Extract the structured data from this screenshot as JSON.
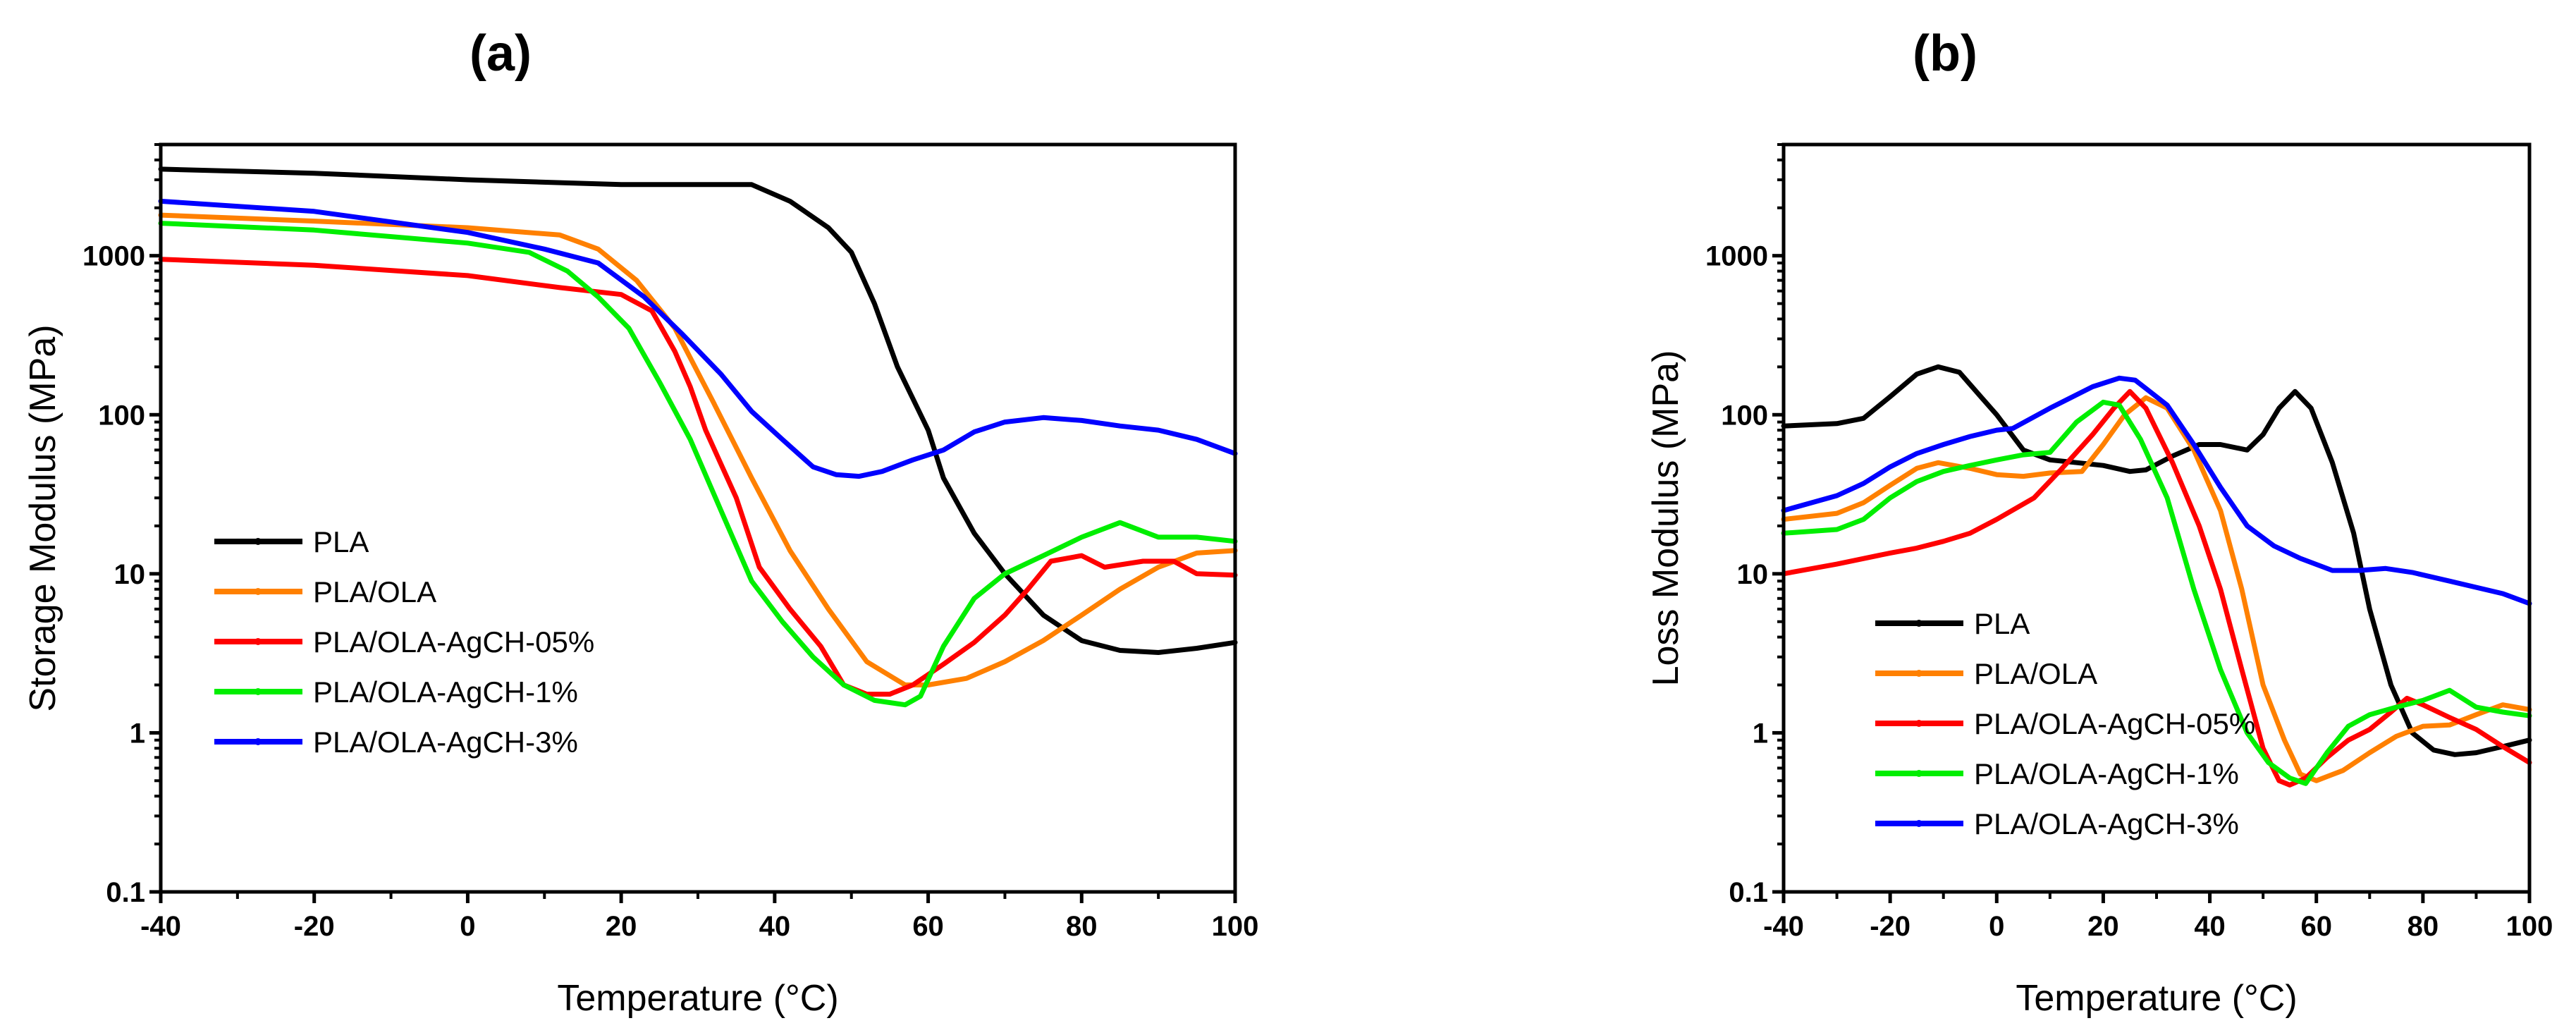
{
  "chart_data": [
    {
      "type": "line",
      "panel_label": "(a)",
      "xlabel": "Temperature (°C)",
      "ylabel": "Storage Modulus (MPa)",
      "xlim": [
        -40,
        100
      ],
      "ylim": [
        0.1,
        5000
      ],
      "yscale": "log",
      "xticks": [
        "-40",
        "-20",
        "0",
        "20",
        "40",
        "60",
        "80",
        "100"
      ],
      "yticks": [
        "0.1",
        "1",
        "10",
        "100",
        "1000"
      ],
      "legend_position": "center-left",
      "series": [
        {
          "name": "PLA",
          "color": "#000000",
          "x": [
            -40,
            -20,
            0,
            20,
            37,
            42,
            47,
            50,
            53,
            56,
            60,
            62,
            66,
            70,
            75,
            80,
            85,
            90,
            95,
            100
          ],
          "y": [
            3500,
            3300,
            3000,
            2800,
            2800,
            2200,
            1500,
            1050,
            500,
            200,
            80,
            40,
            18,
            10,
            5.5,
            3.8,
            3.3,
            3.2,
            3.4,
            3.7
          ]
        },
        {
          "name": "PLA/OLA",
          "color": "#ff8000",
          "x": [
            -40,
            -20,
            0,
            12,
            17,
            22,
            27,
            32,
            37,
            42,
            47,
            52,
            57,
            60,
            65,
            70,
            75,
            80,
            85,
            90,
            95,
            100
          ],
          "y": [
            1800,
            1650,
            1500,
            1350,
            1100,
            700,
            350,
            120,
            40,
            14,
            6,
            2.8,
            2.0,
            2.0,
            2.2,
            2.8,
            3.8,
            5.5,
            8,
            11,
            13.5,
            14
          ]
        },
        {
          "name": "PLA/OLA-AgCH-05%",
          "color": "#ff0000",
          "x": [
            -40,
            -20,
            0,
            12,
            20,
            24,
            27,
            29,
            31,
            35,
            38,
            42,
            46,
            49,
            52,
            55,
            58,
            62,
            66,
            70,
            73,
            76,
            80,
            83,
            88,
            92,
            95,
            100
          ],
          "y": [
            950,
            870,
            750,
            630,
            570,
            450,
            250,
            150,
            80,
            30,
            11,
            6,
            3.5,
            2,
            1.75,
            1.75,
            2,
            2.7,
            3.7,
            5.5,
            8,
            12,
            13,
            11,
            12,
            12,
            10,
            9.8
          ]
        },
        {
          "name": "PLA/OLA-AgCH-1%",
          "color": "#00ee00",
          "x": [
            -40,
            -20,
            0,
            8,
            13,
            17,
            21,
            25,
            29,
            33,
            37,
            41,
            45,
            49,
            53,
            57,
            59,
            62,
            66,
            70,
            75,
            80,
            85,
            90,
            95,
            100
          ],
          "y": [
            1600,
            1450,
            1200,
            1050,
            800,
            550,
            350,
            160,
            70,
            25,
            9,
            5,
            3,
            2,
            1.6,
            1.5,
            1.7,
            3.5,
            7,
            10,
            13,
            17,
            21,
            17,
            17,
            16
          ]
        },
        {
          "name": "PLA/OLA-AgCH-3%",
          "color": "#0000ff",
          "x": [
            -40,
            -20,
            0,
            10,
            17,
            23,
            28,
            33,
            37,
            41,
            45,
            48,
            51,
            54,
            58,
            62,
            66,
            70,
            75,
            80,
            85,
            90,
            95,
            100
          ],
          "y": [
            2200,
            1900,
            1400,
            1100,
            900,
            550,
            320,
            180,
            105,
            70,
            47,
            42,
            41,
            44,
            52,
            60,
            78,
            90,
            96,
            92,
            85,
            80,
            70,
            57
          ]
        }
      ]
    },
    {
      "type": "line",
      "panel_label": "(b)",
      "xlabel": "Temperature (°C)",
      "ylabel": "Loss Modulus (MPa)",
      "xlim": [
        -40,
        100
      ],
      "ylim": [
        0.1,
        5000
      ],
      "yscale": "log",
      "xticks": [
        "-40",
        "-20",
        "0",
        "20",
        "40",
        "60",
        "80",
        "100"
      ],
      "yticks": [
        "0.1",
        "1",
        "10",
        "100",
        "1000"
      ],
      "legend_position": "bottom-left",
      "series": [
        {
          "name": "PLA",
          "color": "#000000",
          "x": [
            -40,
            -30,
            -25,
            -20,
            -15,
            -11,
            -7,
            -3,
            0,
            5,
            10,
            15,
            20,
            25,
            28,
            33,
            38,
            42,
            47,
            50,
            53,
            56,
            59,
            63,
            67,
            70,
            74,
            78,
            82,
            86,
            90,
            95,
            100
          ],
          "y": [
            85,
            88,
            95,
            130,
            180,
            200,
            185,
            130,
            100,
            60,
            52,
            50,
            48,
            44,
            45,
            55,
            65,
            65,
            60,
            75,
            110,
            140,
            110,
            50,
            18,
            6,
            2,
            1,
            0.78,
            0.73,
            0.75,
            0.82,
            0.9
          ]
        },
        {
          "name": "PLA/OLA",
          "color": "#ff8000",
          "x": [
            -40,
            -30,
            -25,
            -20,
            -15,
            -11,
            -5,
            0,
            5,
            10,
            16,
            20,
            24,
            28,
            32,
            37,
            42,
            46,
            50,
            54,
            57,
            60,
            65,
            70,
            75,
            80,
            85,
            90,
            95,
            100
          ],
          "y": [
            22,
            24,
            28,
            36,
            46,
            50,
            46,
            42,
            41,
            43,
            44,
            65,
            100,
            128,
            110,
            60,
            25,
            8,
            2,
            0.9,
            0.55,
            0.5,
            0.58,
            0.75,
            0.95,
            1.1,
            1.12,
            1.3,
            1.5,
            1.4
          ]
        },
        {
          "name": "PLA/OLA-AgCH-05%",
          "color": "#ff0000",
          "x": [
            -40,
            -30,
            -20,
            -15,
            -10,
            -5,
            0,
            7,
            12,
            18,
            22,
            25,
            28,
            33,
            38,
            42,
            46,
            50,
            53,
            55,
            58,
            62,
            66,
            70,
            74,
            77,
            80,
            85,
            90,
            95,
            100
          ],
          "y": [
            10,
            11.5,
            13.5,
            14.5,
            16,
            18,
            22,
            30,
            45,
            75,
            110,
            140,
            110,
            50,
            20,
            8,
            2.5,
            0.8,
            0.5,
            0.47,
            0.52,
            0.7,
            0.9,
            1.05,
            1.35,
            1.65,
            1.5,
            1.25,
            1.05,
            0.82,
            0.65
          ]
        },
        {
          "name": "PLA/OLA-AgCH-1%",
          "color": "#00ee00",
          "x": [
            -40,
            -30,
            -25,
            -20,
            -15,
            -10,
            -5,
            0,
            5,
            10,
            15,
            20,
            23,
            27,
            32,
            37,
            42,
            47,
            51,
            55,
            58,
            62,
            66,
            70,
            75,
            80,
            85,
            90,
            95,
            100
          ],
          "y": [
            18,
            19,
            22,
            30,
            38,
            44,
            48,
            52,
            56,
            58,
            90,
            120,
            115,
            70,
            30,
            8,
            2.5,
            1,
            0.65,
            0.52,
            0.48,
            0.75,
            1.1,
            1.3,
            1.45,
            1.6,
            1.85,
            1.45,
            1.35,
            1.28
          ]
        },
        {
          "name": "PLA/OLA-AgCH-3%",
          "color": "#0000ff",
          "x": [
            -40,
            -30,
            -25,
            -20,
            -15,
            -10,
            -5,
            0,
            3,
            10,
            18,
            23,
            26,
            32,
            37,
            42,
            47,
            52,
            57,
            63,
            68,
            73,
            78,
            85,
            95,
            100
          ],
          "y": [
            25,
            31,
            37,
            47,
            57,
            65,
            73,
            80,
            82,
            110,
            150,
            170,
            165,
            115,
            65,
            35,
            20,
            15,
            12.5,
            10.5,
            10.5,
            10.8,
            10.2,
            9,
            7.5,
            6.5
          ]
        }
      ]
    }
  ]
}
